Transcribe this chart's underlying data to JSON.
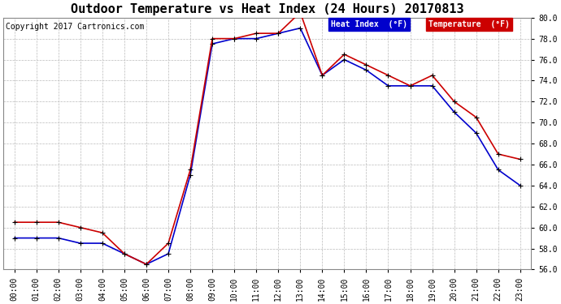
{
  "title": "Outdoor Temperature vs Heat Index (24 Hours) 20170813",
  "copyright": "Copyright 2017 Cartronics.com",
  "hours": [
    "00:00",
    "01:00",
    "02:00",
    "03:00",
    "04:00",
    "05:00",
    "06:00",
    "07:00",
    "08:00",
    "09:00",
    "10:00",
    "11:00",
    "12:00",
    "13:00",
    "14:00",
    "15:00",
    "16:00",
    "17:00",
    "18:00",
    "19:00",
    "20:00",
    "21:00",
    "22:00",
    "23:00"
  ],
  "heat_index": [
    59.0,
    59.0,
    59.0,
    58.5,
    58.5,
    57.5,
    56.5,
    57.5,
    65.0,
    77.5,
    78.0,
    78.0,
    78.5,
    79.0,
    74.5,
    76.0,
    75.0,
    73.5,
    73.5,
    73.5,
    71.0,
    69.0,
    65.5,
    64.0
  ],
  "temperature": [
    60.5,
    60.5,
    60.5,
    60.0,
    59.5,
    57.5,
    56.5,
    58.5,
    65.5,
    78.0,
    78.0,
    78.5,
    78.5,
    80.5,
    74.5,
    76.5,
    75.5,
    74.5,
    73.5,
    74.5,
    72.0,
    70.5,
    67.0,
    66.5
  ],
  "heat_index_color": "#0000cc",
  "temperature_color": "#cc0000",
  "ylim_min": 56.0,
  "ylim_max": 80.0,
  "yticks": [
    56.0,
    58.0,
    60.0,
    62.0,
    64.0,
    66.0,
    68.0,
    70.0,
    72.0,
    74.0,
    76.0,
    78.0,
    80.0
  ],
  "bg_color": "#ffffff",
  "grid_color": "#bbbbbb",
  "legend_hi_bg": "#0000cc",
  "legend_temp_bg": "#cc0000",
  "legend_hi_label": "Heat Index  (°F)",
  "legend_temp_label": "Temperature  (°F)",
  "title_fontsize": 11,
  "copyright_fontsize": 7,
  "tick_fontsize": 7,
  "marker": "+",
  "marker_color": "#000000",
  "marker_size": 5,
  "linewidth": 1.2
}
